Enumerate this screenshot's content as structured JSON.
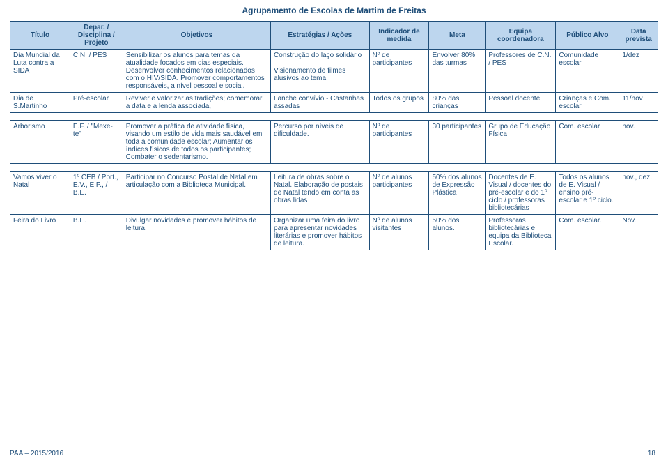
{
  "doc": {
    "header": "Agrupamento de Escolas de Martim de Freitas",
    "footer_left": "PAA – 2015/2016",
    "page_number": "18"
  },
  "columns": {
    "titulo": "Título",
    "disciplina": "Depar. / Disciplina / Projeto",
    "objetivos": "Objetivos",
    "estrategias": "Estratégias / Ações",
    "indicador": "Indicador de medida",
    "meta": "Meta",
    "equipa": "Equipa coordenadora",
    "publico": "Público Alvo",
    "data": "Data prevista"
  },
  "table1": {
    "r0": {
      "titulo": "Dia Mundial da Luta contra a SIDA",
      "disciplina": "C.N. / PES",
      "objetivos": "Sensibilizar os alunos para temas da atualidade focados em dias especiais. Desenvolver conhecimentos relacionados com o HIV/SIDA. Promover comportamentos responsáveis, a nível pessoal e social.",
      "estrategias": "Construção do laço solidário\n\nVisionamento de filmes alusivos ao tema",
      "indicador": "Nº de participantes",
      "meta": "Envolver 80% das turmas",
      "equipa": "Professores de C.N. / PES",
      "publico": "Comunidade escolar",
      "data": "1/dez"
    },
    "r1": {
      "titulo": "Dia de S.Martinho",
      "disciplina": "Pré-escolar",
      "objetivos": "Reviver e valorizar as tradições; comemorar a data e a lenda associada,",
      "estrategias": "Lanche convívio - Castanhas assadas",
      "indicador": "Todos os grupos",
      "meta": "80% das crianças",
      "equipa": "Pessoal docente",
      "publico": "Crianças e Com. escolar",
      "data": "11/nov"
    }
  },
  "table2": {
    "r0": {
      "titulo": "Arborismo",
      "disciplina": "E.F. / \"Mexe-te\"",
      "objetivos": "Promover a prática de atividade física, visando um estilo de vida mais saudável em toda a comunidade escolar; Aumentar os índices físicos de todos os participantes; Combater o sedentarismo.",
      "estrategias": "Percurso por níveis de dificuldade.",
      "indicador": "Nº de participantes",
      "meta": "30 participantes",
      "equipa": "Grupo de Educação Física",
      "publico": "Com. escolar",
      "data": "nov."
    }
  },
  "table3": {
    "r0": {
      "titulo": "Vamos viver o Natal",
      "disciplina": "1º CEB / Port., E.V., E.P., /   B.E.",
      "objetivos": "Participar no Concurso Postal de Natal em articulação com a Biblioteca Municipal.",
      "estrategias": "Leitura de obras sobre o Natal. Elaboração de postais de Natal tendo em conta as obras lidas",
      "indicador": "Nº de alunos participantes",
      "meta": "50% dos alunos de Expressão Plástica",
      "equipa": "Docentes de E. Visual / docentes do pré-escolar e do 1º ciclo / professoras bibliotecárias",
      "publico": "Todos os alunos de E. Visual / ensino pré-escolar e 1º ciclo.",
      "data": "nov., dez."
    },
    "r1": {
      "titulo": "Feira do Livro",
      "disciplina": "B.E.",
      "objetivos": "Divulgar novidades e promover hábitos de leitura.",
      "estrategias": "Organizar uma feira do livro para apresentar novidades literárias e promover hábitos de leitura.",
      "indicador": "Nº de alunos visitantes",
      "meta": "50% dos alunos.",
      "equipa": "Professoras bibliotecárias e equipa da Biblioteca Escolar.",
      "publico": "Com. escolar.",
      "data": "Nov."
    }
  },
  "style": {
    "border_color": "#1f4e79",
    "header_bg": "#bdd6ee",
    "text_color": "#1f4e79",
    "font_size_body": 10,
    "font_size_header": 12
  }
}
